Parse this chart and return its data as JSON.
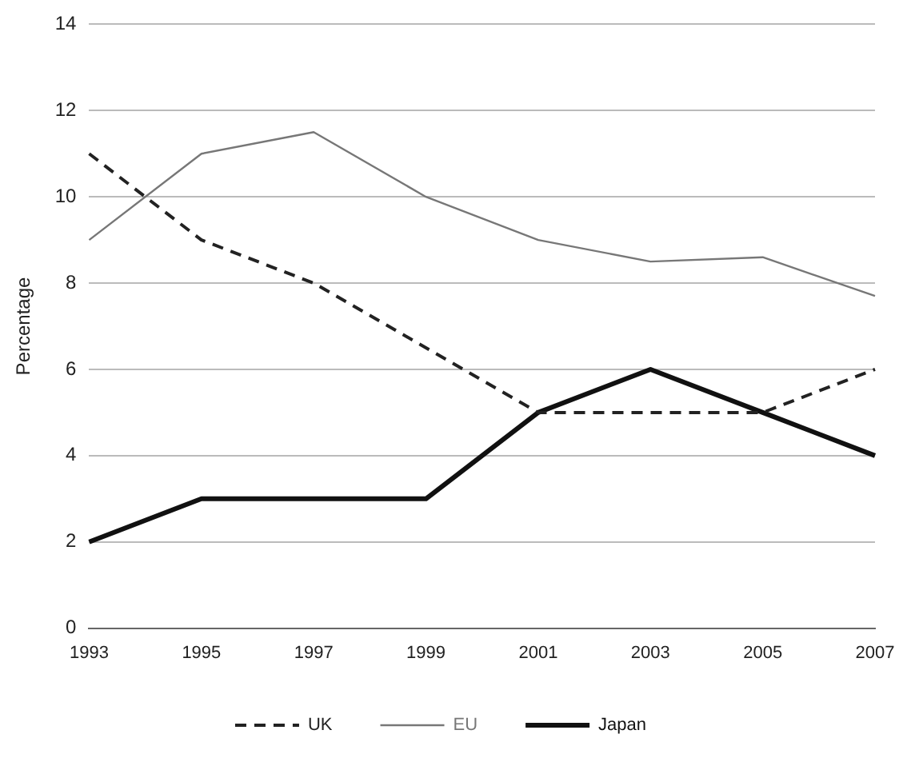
{
  "chart_data": {
    "type": "line",
    "ylabel": "Percentage",
    "categories": [
      "1993",
      "1995",
      "1997",
      "1999",
      "2001",
      "2003",
      "2005",
      "2007"
    ],
    "series": [
      {
        "name": "UK",
        "color": "#222222",
        "line_style": "dashed",
        "values": [
          11,
          9,
          8,
          6.5,
          5,
          5,
          5,
          6
        ]
      },
      {
        "name": "EU",
        "color": "#777777",
        "line_style": "solid",
        "values": [
          9,
          11,
          11.5,
          10,
          9,
          8.5,
          8.6,
          7.7
        ]
      },
      {
        "name": "Japan",
        "color": "#111111",
        "line_style": "solid",
        "values": [
          2,
          3,
          3,
          3,
          5,
          6,
          5,
          4
        ]
      }
    ],
    "ylim": [
      0,
      14
    ],
    "yticks": [
      0,
      2,
      4,
      6,
      8,
      10,
      12,
      14
    ],
    "grid": "y",
    "legend": "bottom",
    "marker": "none"
  }
}
